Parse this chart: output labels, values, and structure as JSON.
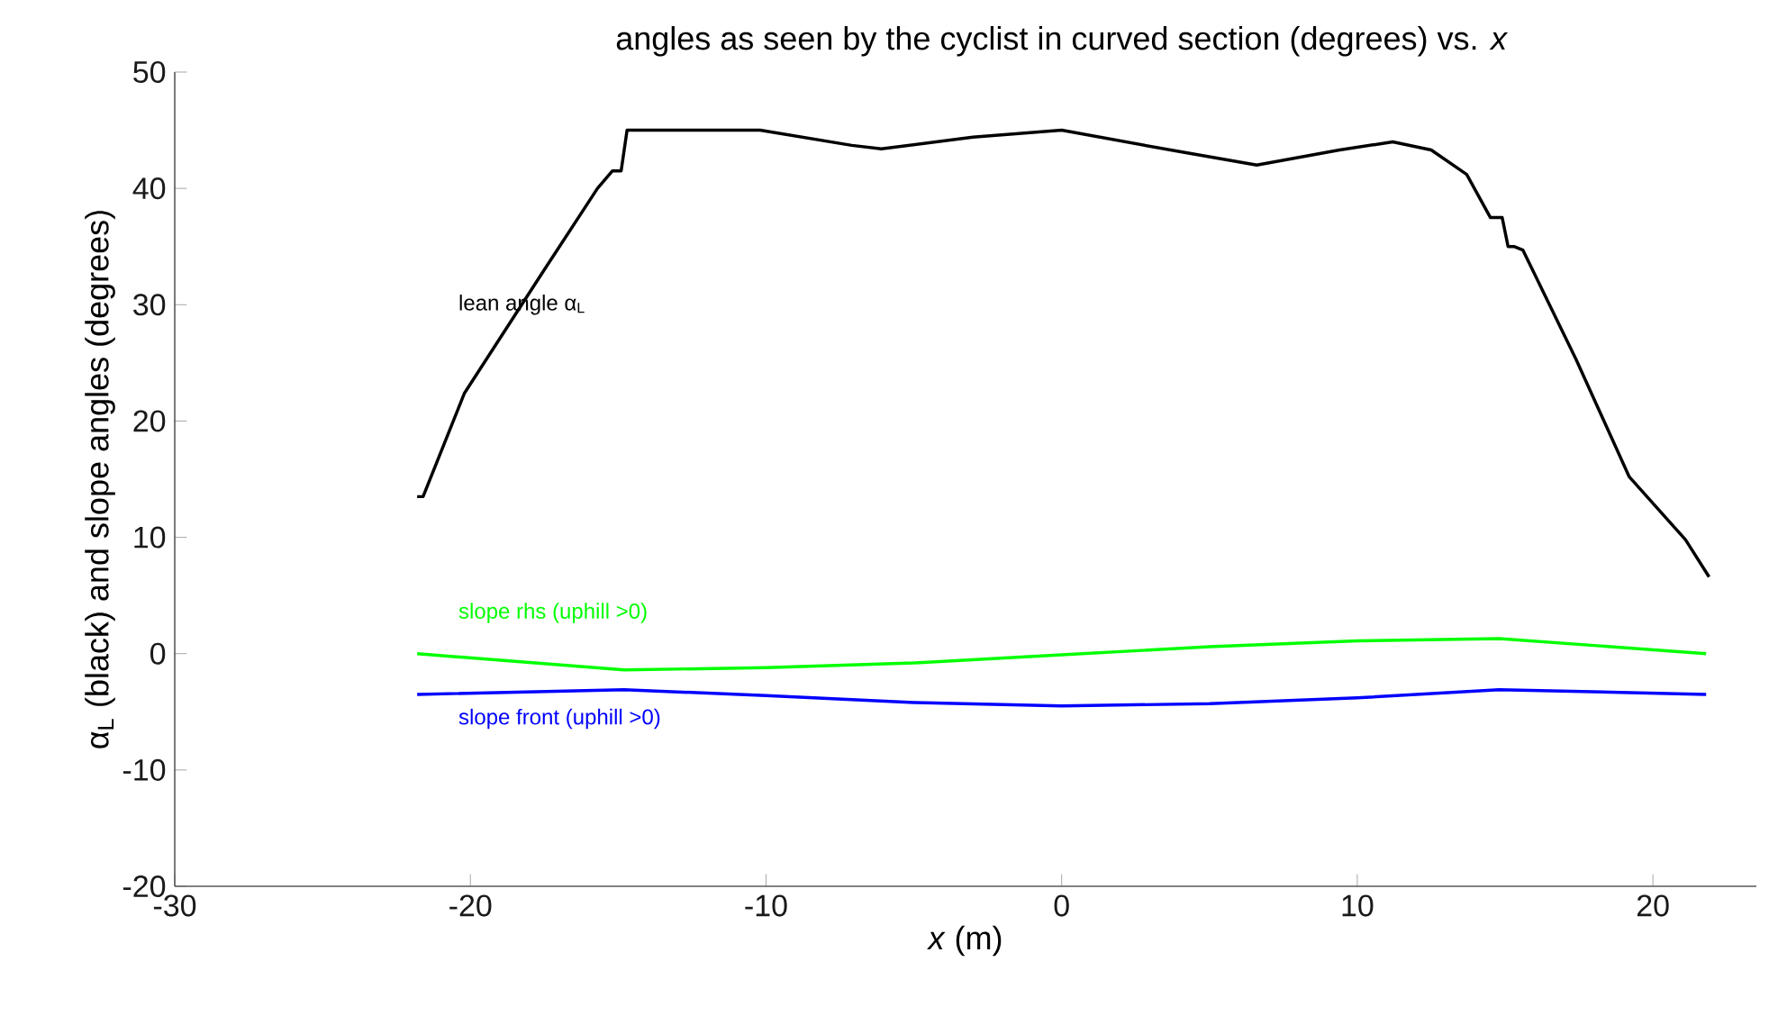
{
  "chart_data": {
    "type": "line",
    "title": "angles as seen by the cyclist in curved section (degrees) vs. *x*",
    "xlabel": "*x*  (m)",
    "ylabel": "α$_{L}$ (black) and slope angles (degrees)",
    "xlim": [
      -30,
      23.5
    ],
    "ylim": [
      -20,
      50
    ],
    "xticks": [
      -30,
      -20,
      -10,
      0,
      10,
      20
    ],
    "yticks": [
      -20,
      -10,
      0,
      10,
      20,
      30,
      40,
      50
    ],
    "grid": false,
    "legend": false,
    "marker": "none",
    "line_style": "solid",
    "series": [
      {
        "name": "lean angle α$_{L}$",
        "color": "#000000",
        "x": [
          -21.8,
          -21.6,
          -20.2,
          -17.5,
          -15.7,
          -15.2,
          -14.9,
          -14.7,
          -14.1,
          -10.2,
          -7.1,
          -6.1,
          -3,
          0,
          3.9,
          6.6,
          9.4,
          11.2,
          12.5,
          13.7,
          14.5,
          14.9,
          15.1,
          15.3,
          15.6,
          17.4,
          19.2,
          20.5,
          21.1,
          21.9
        ],
        "values": [
          13.5,
          13.5,
          22.4,
          33,
          40,
          41.5,
          41.5,
          45,
          45,
          45,
          43.7,
          43.4,
          44.4,
          45,
          43.2,
          42,
          43.3,
          44,
          43.3,
          41.2,
          37.5,
          37.5,
          35,
          35,
          34.7,
          25.3,
          15.2,
          11.5,
          9.8,
          6.6
        ]
      },
      {
        "name": "slope rhs (uphill >0)",
        "color": "#00ff00",
        "x": [
          -21.8,
          -14.8,
          -10,
          -5,
          0,
          5,
          10,
          14.8,
          21.8
        ],
        "values": [
          0,
          -1.4,
          -1.2,
          -0.8,
          -0.1,
          0.6,
          1.1,
          1.3,
          0
        ]
      },
      {
        "name": "slope front (uphill >0)",
        "color": "#0000ff",
        "x": [
          -21.8,
          -14.8,
          -10,
          -5,
          0,
          5,
          10,
          14.8,
          21.8
        ],
        "values": [
          -3.5,
          -3.1,
          -3.6,
          -4.2,
          -4.5,
          -4.3,
          -3.8,
          -3.1,
          -3.5
        ]
      }
    ]
  }
}
